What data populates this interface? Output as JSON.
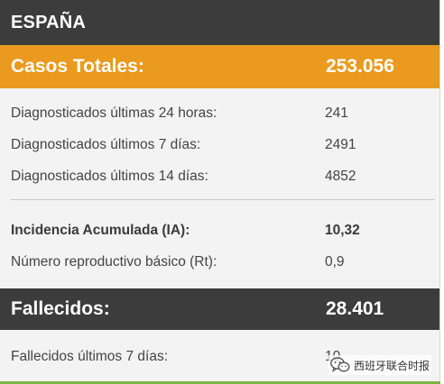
{
  "header": {
    "title": "ESPAÑA"
  },
  "cases": {
    "label": "Casos Totales:",
    "value": "253.056",
    "rows": [
      {
        "label": "Diagnosticados últimas 24 horas:",
        "value": "241"
      },
      {
        "label": "Diagnosticados últimos 7 días:",
        "value": "2491"
      },
      {
        "label": "Diagnosticados últimos 14 días:",
        "value": "4852"
      }
    ]
  },
  "incidence": {
    "label": "Incidencia Acumulada (IA):",
    "value": "10,32"
  },
  "rt": {
    "label": "Número reproductivo básico (Rt):",
    "value": "0,9"
  },
  "deaths": {
    "label": "Fallecidos:",
    "value": "28.401",
    "rows": [
      {
        "label": "Fallecidos últimos 7 días:",
        "value": "10"
      }
    ]
  },
  "watermark": {
    "text": "西班牙联合时报",
    "icon": "wechat-icon"
  },
  "colors": {
    "orange": "#ea9a1e",
    "dark": "#3c3c3c",
    "accent_line": "#7cb342"
  }
}
